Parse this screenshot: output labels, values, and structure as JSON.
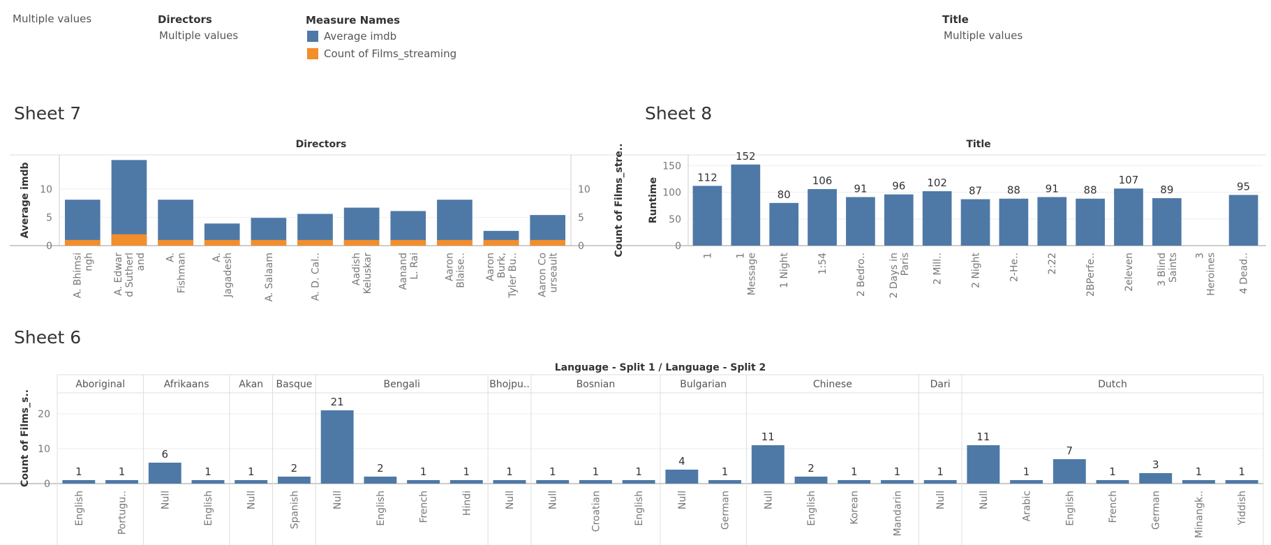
{
  "filters": {
    "top_left_value": "Multiple values",
    "directors": {
      "title": "Directors",
      "value": "Multiple values"
    },
    "measure_names": {
      "title": "Measure Names",
      "items": [
        {
          "label": "Average imdb",
          "color": "#4e79a7"
        },
        {
          "label": "Count of Films_streaming",
          "color": "#f28e2b"
        }
      ]
    },
    "title_filter": {
      "title": "Title",
      "value": "Multiple values"
    }
  },
  "chart_data": [
    {
      "sheet": "Sheet 7",
      "type": "bar",
      "header": "Directors",
      "ylabel": "Average imdb",
      "y2label": "Count of Films_stre..",
      "ylim": [
        0,
        16
      ],
      "yticks": [
        0,
        5,
        10
      ],
      "categories": [
        [
          "A. Bhimsi",
          "ngh"
        ],
        [
          "A. Edwar",
          "d Sutherl",
          "and"
        ],
        [
          "A.",
          "Fishman"
        ],
        [
          "A.",
          "Jagadesh"
        ],
        [
          "A. Salaam"
        ],
        [
          "A. D. Cal.."
        ],
        [
          "Aadish",
          "Keluskar"
        ],
        [
          "Aanand",
          "L. Rai"
        ],
        [
          "Aaron",
          "Blaise.."
        ],
        [
          "Aaron",
          "Burk,",
          "Tyler Bu.."
        ],
        [
          "Aaron Co",
          "urseault"
        ]
      ],
      "series": [
        {
          "name": "Average imdb",
          "color": "#4e79a7",
          "values": [
            8.1,
            15.1,
            8.1,
            3.9,
            4.9,
            5.6,
            6.7,
            6.1,
            8.1,
            2.6,
            5.4
          ]
        },
        {
          "name": "Count of Films_streaming",
          "color": "#f28e2b",
          "values": [
            1,
            2,
            1,
            1,
            1,
            1,
            1,
            1,
            1,
            1,
            1
          ]
        }
      ]
    },
    {
      "sheet": "Sheet 8",
      "type": "bar",
      "header": "Title",
      "ylabel": "Runtime",
      "ylim": [
        0,
        170
      ],
      "yticks": [
        0,
        50,
        100,
        150
      ],
      "categories": [
        [
          "1"
        ],
        [
          "1",
          "Message"
        ],
        [
          "1 Night"
        ],
        [
          "1:54"
        ],
        [
          "2 Bedro.."
        ],
        [
          "2 Days in",
          "Paris"
        ],
        [
          "2 Mill.."
        ],
        [
          "2 Night"
        ],
        [
          "2-He.."
        ],
        [
          "2:22"
        ],
        [
          "2BPerfe.."
        ],
        [
          "2eleven"
        ],
        [
          "3 Blind",
          "Saints"
        ],
        [
          "3",
          "Heroines"
        ],
        [
          "4 Dead.."
        ]
      ],
      "values": [
        112,
        152,
        80,
        106,
        91,
        96,
        102,
        87,
        88,
        91,
        88,
        107,
        89,
        null,
        95
      ],
      "color": "#4e79a7"
    },
    {
      "sheet": "Sheet 6",
      "type": "bar",
      "header": "Language - Split 1  /  Language - Split 2",
      "ylabel": "Count of Films_s..",
      "ylim": [
        0,
        26
      ],
      "yticks": [
        0,
        10,
        20
      ],
      "color": "#4e79a7",
      "groups": [
        {
          "name": "Aboriginal",
          "bars": [
            {
              "label": "English",
              "value": 1
            },
            {
              "label": "Portugu..",
              "value": 1
            }
          ]
        },
        {
          "name": "Afrikaans",
          "bars": [
            {
              "label": "Null",
              "value": 6
            },
            {
              "label": "English",
              "value": 1
            }
          ]
        },
        {
          "name": "Akan",
          "bars": [
            {
              "label": "Null",
              "value": 1
            }
          ]
        },
        {
          "name": "Basque",
          "bars": [
            {
              "label": "Spanish",
              "value": 2
            }
          ]
        },
        {
          "name": "Bengali",
          "bars": [
            {
              "label": "Null",
              "value": 21
            },
            {
              "label": "English",
              "value": 2
            },
            {
              "label": "French",
              "value": 1
            },
            {
              "label": "Hindi",
              "value": 1
            }
          ]
        },
        {
          "name": "Bhojpu..",
          "bars": [
            {
              "label": "Null",
              "value": 1
            }
          ]
        },
        {
          "name": "Bosnian",
          "bars": [
            {
              "label": "Null",
              "value": 1
            },
            {
              "label": "Croatian",
              "value": 1
            },
            {
              "label": "English",
              "value": 1
            }
          ]
        },
        {
          "name": "Bulgarian",
          "bars": [
            {
              "label": "Null",
              "value": 4
            },
            {
              "label": "German",
              "value": 1
            }
          ]
        },
        {
          "name": "Chinese",
          "bars": [
            {
              "label": "Null",
              "value": 11
            },
            {
              "label": "English",
              "value": 2
            },
            {
              "label": "Korean",
              "value": 1
            },
            {
              "label": "Mandarin",
              "value": 1
            }
          ]
        },
        {
          "name": "Dari",
          "bars": [
            {
              "label": "Null",
              "value": 1
            }
          ]
        },
        {
          "name": "Dutch",
          "bars": [
            {
              "label": "Null",
              "value": 11
            },
            {
              "label": "Arabic",
              "value": 1
            },
            {
              "label": "English",
              "value": 7
            },
            {
              "label": "French",
              "value": 1
            },
            {
              "label": "German",
              "value": 3
            },
            {
              "label": "Minangk..",
              "value": 1
            },
            {
              "label": "Yiddish",
              "value": 1
            }
          ]
        }
      ]
    }
  ]
}
